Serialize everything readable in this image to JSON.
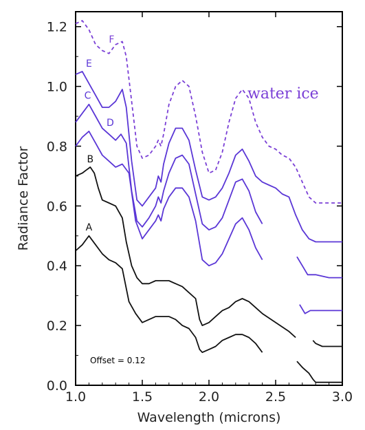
{
  "chart_data": {
    "type": "line",
    "title": "",
    "xlabel": "Wavelength (microns)",
    "ylabel": "Radiance Factor",
    "xlim": [
      1.0,
      3.0
    ],
    "ylim": [
      0.0,
      1.25
    ],
    "xticks": [
      "1.0",
      "1.5",
      "2.0",
      "2.5",
      "3.0"
    ],
    "yticks": [
      "0.0",
      "0.2",
      "0.4",
      "0.6",
      "0.8",
      "1.0",
      "1.2"
    ],
    "grid": false,
    "note": "Offset = 0.12",
    "annotation": {
      "text": "water ice",
      "color": "#7a3fd6"
    },
    "series": [
      {
        "name": "A",
        "color": "#111111",
        "dashed": false,
        "segments": [
          [
            [
              1.0,
              0.45
            ],
            [
              1.05,
              0.47
            ],
            [
              1.1,
              0.5
            ],
            [
              1.15,
              0.47
            ],
            [
              1.2,
              0.44
            ],
            [
              1.25,
              0.42
            ],
            [
              1.3,
              0.41
            ],
            [
              1.35,
              0.39
            ],
            [
              1.4,
              0.28
            ],
            [
              1.45,
              0.24
            ],
            [
              1.5,
              0.21
            ],
            [
              1.55,
              0.22
            ],
            [
              1.6,
              0.23
            ],
            [
              1.65,
              0.23
            ],
            [
              1.7,
              0.23
            ],
            [
              1.75,
              0.22
            ],
            [
              1.8,
              0.2
            ],
            [
              1.85,
              0.19
            ],
            [
              1.9,
              0.16
            ],
            [
              1.93,
              0.12
            ],
            [
              1.95,
              0.11
            ],
            [
              2.0,
              0.12
            ],
            [
              2.05,
              0.13
            ],
            [
              2.1,
              0.15
            ],
            [
              2.15,
              0.16
            ],
            [
              2.2,
              0.17
            ],
            [
              2.25,
              0.17
            ],
            [
              2.3,
              0.16
            ],
            [
              2.35,
              0.14
            ],
            [
              2.4,
              0.11
            ]
          ],
          [
            [
              2.66,
              0.08
            ],
            [
              2.7,
              0.06
            ],
            [
              2.75,
              0.04
            ],
            [
              2.78,
              0.02
            ],
            [
              2.8,
              0.01
            ],
            [
              2.85,
              0.01
            ],
            [
              2.9,
              0.01
            ],
            [
              3.0,
              0.01
            ]
          ]
        ]
      },
      {
        "name": "B",
        "color": "#111111",
        "dashed": false,
        "segments": [
          [
            [
              1.0,
              0.7
            ],
            [
              1.05,
              0.71
            ],
            [
              1.08,
              0.72
            ],
            [
              1.11,
              0.73
            ],
            [
              1.14,
              0.71
            ],
            [
              1.17,
              0.66
            ],
            [
              1.2,
              0.62
            ],
            [
              1.25,
              0.61
            ],
            [
              1.3,
              0.6
            ],
            [
              1.35,
              0.56
            ],
            [
              1.38,
              0.48
            ],
            [
              1.42,
              0.4
            ],
            [
              1.46,
              0.36
            ],
            [
              1.5,
              0.34
            ],
            [
              1.55,
              0.34
            ],
            [
              1.6,
              0.35
            ],
            [
              1.65,
              0.35
            ],
            [
              1.7,
              0.35
            ],
            [
              1.75,
              0.34
            ],
            [
              1.8,
              0.33
            ],
            [
              1.85,
              0.31
            ],
            [
              1.9,
              0.29
            ],
            [
              1.93,
              0.22
            ],
            [
              1.95,
              0.2
            ],
            [
              2.0,
              0.21
            ],
            [
              2.05,
              0.23
            ],
            [
              2.1,
              0.25
            ],
            [
              2.15,
              0.26
            ],
            [
              2.2,
              0.28
            ],
            [
              2.25,
              0.29
            ],
            [
              2.3,
              0.28
            ],
            [
              2.35,
              0.26
            ],
            [
              2.4,
              0.24
            ],
            [
              2.5,
              0.21
            ],
            [
              2.6,
              0.18
            ],
            [
              2.65,
              0.16
            ]
          ],
          [
            [
              2.78,
              0.15
            ],
            [
              2.8,
              0.14
            ],
            [
              2.85,
              0.13
            ],
            [
              2.9,
              0.13
            ],
            [
              3.0,
              0.13
            ]
          ]
        ]
      },
      {
        "name": "D",
        "color": "#5a36d6",
        "dashed": false,
        "segments": [
          [
            [
              1.0,
              0.8
            ],
            [
              1.05,
              0.83
            ],
            [
              1.1,
              0.85
            ],
            [
              1.15,
              0.81
            ],
            [
              1.2,
              0.77
            ],
            [
              1.25,
              0.75
            ],
            [
              1.3,
              0.73
            ],
            [
              1.35,
              0.74
            ],
            [
              1.4,
              0.71
            ],
            [
              1.45,
              0.55
            ],
            [
              1.5,
              0.49
            ],
            [
              1.55,
              0.52
            ],
            [
              1.6,
              0.55
            ],
            [
              1.62,
              0.57
            ],
            [
              1.64,
              0.55
            ],
            [
              1.66,
              0.59
            ],
            [
              1.7,
              0.63
            ],
            [
              1.75,
              0.66
            ],
            [
              1.8,
              0.66
            ],
            [
              1.85,
              0.63
            ],
            [
              1.9,
              0.55
            ],
            [
              1.95,
              0.42
            ],
            [
              2.0,
              0.4
            ],
            [
              2.05,
              0.41
            ],
            [
              2.1,
              0.44
            ],
            [
              2.15,
              0.49
            ],
            [
              2.2,
              0.54
            ],
            [
              2.25,
              0.56
            ],
            [
              2.3,
              0.52
            ],
            [
              2.35,
              0.46
            ],
            [
              2.4,
              0.42
            ]
          ],
          [
            [
              2.68,
              0.27
            ],
            [
              2.72,
              0.24
            ],
            [
              2.76,
              0.25
            ],
            [
              2.8,
              0.25
            ],
            [
              2.9,
              0.25
            ],
            [
              3.0,
              0.25
            ]
          ]
        ]
      },
      {
        "name": "C",
        "color": "#5a36d6",
        "dashed": false,
        "segments": [
          [
            [
              1.0,
              0.88
            ],
            [
              1.05,
              0.91
            ],
            [
              1.1,
              0.94
            ],
            [
              1.15,
              0.9
            ],
            [
              1.2,
              0.86
            ],
            [
              1.25,
              0.84
            ],
            [
              1.3,
              0.82
            ],
            [
              1.34,
              0.84
            ],
            [
              1.38,
              0.81
            ],
            [
              1.42,
              0.65
            ],
            [
              1.46,
              0.55
            ],
            [
              1.5,
              0.53
            ],
            [
              1.55,
              0.56
            ],
            [
              1.6,
              0.6
            ],
            [
              1.62,
              0.63
            ],
            [
              1.64,
              0.61
            ],
            [
              1.66,
              0.65
            ],
            [
              1.7,
              0.71
            ],
            [
              1.75,
              0.76
            ],
            [
              1.8,
              0.77
            ],
            [
              1.85,
              0.74
            ],
            [
              1.9,
              0.64
            ],
            [
              1.95,
              0.54
            ],
            [
              2.0,
              0.52
            ],
            [
              2.05,
              0.53
            ],
            [
              2.1,
              0.56
            ],
            [
              2.15,
              0.62
            ],
            [
              2.2,
              0.68
            ],
            [
              2.25,
              0.69
            ],
            [
              2.3,
              0.65
            ],
            [
              2.35,
              0.58
            ],
            [
              2.4,
              0.54
            ]
          ],
          [
            [
              2.66,
              0.43
            ],
            [
              2.7,
              0.4
            ],
            [
              2.74,
              0.37
            ],
            [
              2.8,
              0.37
            ],
            [
              2.9,
              0.36
            ],
            [
              3.0,
              0.36
            ]
          ]
        ]
      },
      {
        "name": "E",
        "color": "#5a36d6",
        "dashed": false,
        "segments": [
          [
            [
              1.0,
              1.04
            ],
            [
              1.05,
              1.05
            ],
            [
              1.1,
              1.01
            ],
            [
              1.15,
              0.97
            ],
            [
              1.2,
              0.93
            ],
            [
              1.25,
              0.93
            ],
            [
              1.3,
              0.95
            ],
            [
              1.35,
              0.99
            ],
            [
              1.38,
              0.93
            ],
            [
              1.42,
              0.75
            ],
            [
              1.46,
              0.62
            ],
            [
              1.5,
              0.6
            ],
            [
              1.55,
              0.63
            ],
            [
              1.6,
              0.66
            ],
            [
              1.62,
              0.7
            ],
            [
              1.64,
              0.68
            ],
            [
              1.66,
              0.74
            ],
            [
              1.7,
              0.81
            ],
            [
              1.75,
              0.86
            ],
            [
              1.8,
              0.86
            ],
            [
              1.85,
              0.82
            ],
            [
              1.9,
              0.72
            ],
            [
              1.95,
              0.63
            ],
            [
              2.0,
              0.62
            ],
            [
              2.05,
              0.63
            ],
            [
              2.1,
              0.66
            ],
            [
              2.15,
              0.71
            ],
            [
              2.2,
              0.77
            ],
            [
              2.25,
              0.79
            ],
            [
              2.3,
              0.75
            ],
            [
              2.35,
              0.7
            ],
            [
              2.4,
              0.68
            ],
            [
              2.45,
              0.67
            ],
            [
              2.5,
              0.66
            ],
            [
              2.55,
              0.64
            ],
            [
              2.6,
              0.63
            ],
            [
              2.65,
              0.57
            ],
            [
              2.7,
              0.52
            ],
            [
              2.75,
              0.49
            ],
            [
              2.8,
              0.48
            ],
            [
              2.9,
              0.48
            ],
            [
              3.0,
              0.48
            ]
          ]
        ]
      },
      {
        "name": "F",
        "color": "#7a3fd6",
        "dashed": true,
        "segments": [
          [
            [
              1.0,
              1.21
            ],
            [
              1.05,
              1.22
            ],
            [
              1.1,
              1.19
            ],
            [
              1.15,
              1.14
            ],
            [
              1.2,
              1.12
            ],
            [
              1.25,
              1.11
            ],
            [
              1.3,
              1.14
            ],
            [
              1.35,
              1.15
            ],
            [
              1.38,
              1.1
            ],
            [
              1.42,
              0.95
            ],
            [
              1.46,
              0.8
            ],
            [
              1.5,
              0.76
            ],
            [
              1.55,
              0.77
            ],
            [
              1.6,
              0.8
            ],
            [
              1.62,
              0.82
            ],
            [
              1.64,
              0.8
            ],
            [
              1.66,
              0.84
            ],
            [
              1.7,
              0.94
            ],
            [
              1.75,
              1.0
            ],
            [
              1.8,
              1.02
            ],
            [
              1.85,
              1.0
            ],
            [
              1.9,
              0.9
            ],
            [
              1.95,
              0.78
            ],
            [
              2.0,
              0.71
            ],
            [
              2.05,
              0.72
            ],
            [
              2.1,
              0.78
            ],
            [
              2.15,
              0.88
            ],
            [
              2.2,
              0.96
            ],
            [
              2.25,
              0.99
            ],
            [
              2.3,
              0.96
            ],
            [
              2.35,
              0.88
            ],
            [
              2.4,
              0.83
            ],
            [
              2.45,
              0.8
            ],
            [
              2.5,
              0.79
            ],
            [
              2.55,
              0.77
            ],
            [
              2.6,
              0.76
            ],
            [
              2.65,
              0.73
            ],
            [
              2.7,
              0.68
            ],
            [
              2.75,
              0.63
            ],
            [
              2.8,
              0.61
            ],
            [
              2.9,
              0.61
            ],
            [
              3.0,
              0.61
            ]
          ]
        ]
      }
    ]
  }
}
